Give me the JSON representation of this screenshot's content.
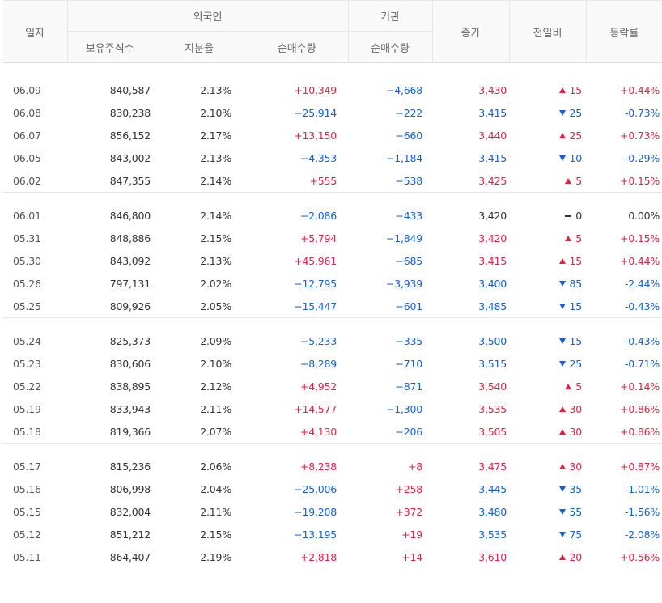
{
  "headers": {
    "date": "일자",
    "foreign": "외국인",
    "institution": "기관",
    "close": "종가",
    "change": "전일비",
    "change_rate": "등락률",
    "holdings": "보유주식수",
    "share_ratio": "지분율",
    "foreign_net": "순매수량",
    "institution_net": "순매수량"
  },
  "colors": {
    "up": "#e12343",
    "down": "#1760d3"
  },
  "groups": [
    [
      {
        "date": "06.09",
        "holdings": "840,587",
        "ratio": "2.13%",
        "foreign_net": "+10,349",
        "inst_net": "−4,668",
        "close": "3,430",
        "change": "15",
        "dir": "up",
        "pct": "+0.44%"
      },
      {
        "date": "06.08",
        "holdings": "830,238",
        "ratio": "2.10%",
        "foreign_net": "−25,914",
        "inst_net": "−222",
        "close": "3,415",
        "change": "25",
        "dir": "down",
        "pct": "-0.73%"
      },
      {
        "date": "06.07",
        "holdings": "856,152",
        "ratio": "2.17%",
        "foreign_net": "+13,150",
        "inst_net": "−660",
        "close": "3,440",
        "change": "25",
        "dir": "up",
        "pct": "+0.73%"
      },
      {
        "date": "06.05",
        "holdings": "843,002",
        "ratio": "2.13%",
        "foreign_net": "−4,353",
        "inst_net": "−1,184",
        "close": "3,415",
        "change": "10",
        "dir": "down",
        "pct": "-0.29%"
      },
      {
        "date": "06.02",
        "holdings": "847,355",
        "ratio": "2.14%",
        "foreign_net": "+555",
        "inst_net": "−538",
        "close": "3,425",
        "change": "5",
        "dir": "up",
        "pct": "+0.15%"
      }
    ],
    [
      {
        "date": "06.01",
        "holdings": "846,800",
        "ratio": "2.14%",
        "foreign_net": "−2,086",
        "inst_net": "−433",
        "close": "3,420",
        "change": "0",
        "dir": "flat",
        "pct": "0.00%"
      },
      {
        "date": "05.31",
        "holdings": "848,886",
        "ratio": "2.15%",
        "foreign_net": "+5,794",
        "inst_net": "−1,849",
        "close": "3,420",
        "change": "5",
        "dir": "up",
        "pct": "+0.15%"
      },
      {
        "date": "05.30",
        "holdings": "843,092",
        "ratio": "2.13%",
        "foreign_net": "+45,961",
        "inst_net": "−685",
        "close": "3,415",
        "change": "15",
        "dir": "up",
        "pct": "+0.44%"
      },
      {
        "date": "05.26",
        "holdings": "797,131",
        "ratio": "2.02%",
        "foreign_net": "−12,795",
        "inst_net": "−3,939",
        "close": "3,400",
        "change": "85",
        "dir": "down",
        "pct": "-2.44%"
      },
      {
        "date": "05.25",
        "holdings": "809,926",
        "ratio": "2.05%",
        "foreign_net": "−15,447",
        "inst_net": "−601",
        "close": "3,485",
        "change": "15",
        "dir": "down",
        "pct": "-0.43%"
      }
    ],
    [
      {
        "date": "05.24",
        "holdings": "825,373",
        "ratio": "2.09%",
        "foreign_net": "−5,233",
        "inst_net": "−335",
        "close": "3,500",
        "change": "15",
        "dir": "down",
        "pct": "-0.43%"
      },
      {
        "date": "05.23",
        "holdings": "830,606",
        "ratio": "2.10%",
        "foreign_net": "−8,289",
        "inst_net": "−710",
        "close": "3,515",
        "change": "25",
        "dir": "down",
        "pct": "-0.71%"
      },
      {
        "date": "05.22",
        "holdings": "838,895",
        "ratio": "2.12%",
        "foreign_net": "+4,952",
        "inst_net": "−871",
        "close": "3,540",
        "change": "5",
        "dir": "up",
        "pct": "+0.14%"
      },
      {
        "date": "05.19",
        "holdings": "833,943",
        "ratio": "2.11%",
        "foreign_net": "+14,577",
        "inst_net": "−1,300",
        "close": "3,535",
        "change": "30",
        "dir": "up",
        "pct": "+0.86%"
      },
      {
        "date": "05.18",
        "holdings": "819,366",
        "ratio": "2.07%",
        "foreign_net": "+4,130",
        "inst_net": "−206",
        "close": "3,505",
        "change": "30",
        "dir": "up",
        "pct": "+0.86%"
      }
    ],
    [
      {
        "date": "05.17",
        "holdings": "815,236",
        "ratio": "2.06%",
        "foreign_net": "+8,238",
        "inst_net": "+8",
        "close": "3,475",
        "change": "30",
        "dir": "up",
        "pct": "+0.87%"
      },
      {
        "date": "05.16",
        "holdings": "806,998",
        "ratio": "2.04%",
        "foreign_net": "−25,006",
        "inst_net": "+258",
        "close": "3,445",
        "change": "35",
        "dir": "down",
        "pct": "-1.01%"
      },
      {
        "date": "05.15",
        "holdings": "832,004",
        "ratio": "2.11%",
        "foreign_net": "−19,208",
        "inst_net": "+372",
        "close": "3,480",
        "change": "55",
        "dir": "down",
        "pct": "-1.56%"
      },
      {
        "date": "05.12",
        "holdings": "851,212",
        "ratio": "2.15%",
        "foreign_net": "−13,195",
        "inst_net": "+19",
        "close": "3,535",
        "change": "75",
        "dir": "down",
        "pct": "-2.08%"
      },
      {
        "date": "05.11",
        "holdings": "864,407",
        "ratio": "2.19%",
        "foreign_net": "+2,818",
        "inst_net": "+14",
        "close": "3,610",
        "change": "20",
        "dir": "up",
        "pct": "+0.56%"
      }
    ]
  ]
}
